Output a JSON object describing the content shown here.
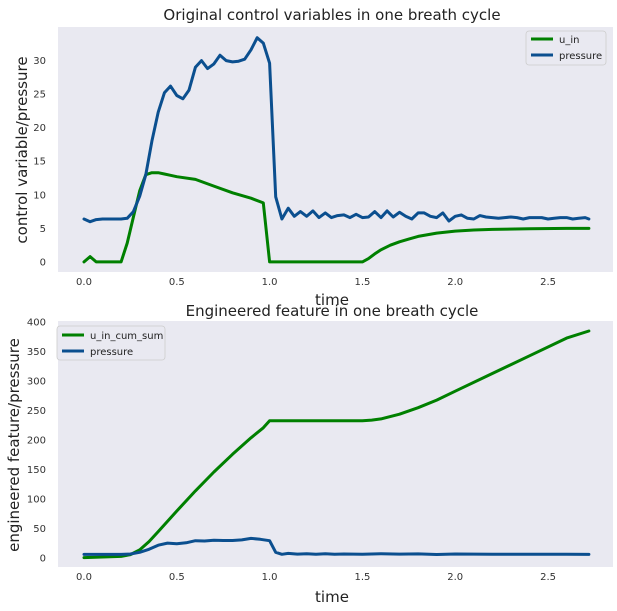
{
  "colors": {
    "u_in": "#008000",
    "pressure": "#0b4f8f",
    "plot_bg": "#e9e9f1",
    "page_bg": "#ffffff"
  },
  "chart_data": [
    {
      "type": "line",
      "title": "Original control variables in one breath cycle",
      "xlabel": "time",
      "ylabel": "control variable/pressure",
      "xlim": [
        -0.14,
        2.85
      ],
      "ylim": [
        -1.5,
        35
      ],
      "xticks": [
        0.0,
        0.5,
        1.0,
        1.5,
        2.0,
        2.5
      ],
      "xtick_labels": [
        "0.0",
        "0.5",
        "1.0",
        "1.5",
        "2.0",
        "2.5"
      ],
      "yticks": [
        0,
        5,
        10,
        15,
        20,
        25,
        30
      ],
      "ytick_labels": [
        "0",
        "5",
        "10",
        "15",
        "20",
        "25",
        "30"
      ],
      "grid": false,
      "legend_position": "top-right",
      "series": [
        {
          "name": "u_in",
          "color": "#008000",
          "x": [
            0.0,
            0.033,
            0.066,
            0.1,
            0.2,
            0.233,
            0.266,
            0.3,
            0.333,
            0.366,
            0.4,
            0.433,
            0.466,
            0.5,
            0.6,
            0.7,
            0.8,
            0.9,
            0.966,
            1.0,
            1.1,
            1.2,
            1.3,
            1.4,
            1.5,
            1.533,
            1.566,
            1.6,
            1.65,
            1.7,
            1.75,
            1.8,
            1.9,
            2.0,
            2.1,
            2.2,
            2.4,
            2.6,
            2.72
          ],
          "values": [
            0.0,
            0.8,
            0.0,
            0.0,
            0.0,
            2.8,
            6.7,
            10.6,
            13.0,
            13.3,
            13.3,
            13.1,
            12.9,
            12.7,
            12.3,
            11.3,
            10.3,
            9.5,
            8.8,
            0.0,
            0.0,
            0.0,
            0.0,
            0.0,
            0.0,
            0.5,
            1.2,
            1.8,
            2.5,
            3.0,
            3.4,
            3.8,
            4.3,
            4.6,
            4.75,
            4.85,
            4.95,
            5.0,
            5.0
          ]
        },
        {
          "name": "pressure",
          "color": "#0b4f8f",
          "x": [
            0.0,
            0.033,
            0.066,
            0.1,
            0.133,
            0.166,
            0.2,
            0.233,
            0.266,
            0.3,
            0.333,
            0.366,
            0.4,
            0.433,
            0.466,
            0.5,
            0.533,
            0.566,
            0.6,
            0.633,
            0.666,
            0.7,
            0.733,
            0.766,
            0.8,
            0.833,
            0.866,
            0.9,
            0.933,
            0.966,
            1.0,
            1.033,
            1.066,
            1.1,
            1.133,
            1.166,
            1.2,
            1.233,
            1.266,
            1.3,
            1.333,
            1.366,
            1.4,
            1.433,
            1.466,
            1.5,
            1.533,
            1.566,
            1.6,
            1.633,
            1.666,
            1.7,
            1.733,
            1.766,
            1.8,
            1.833,
            1.866,
            1.9,
            1.933,
            1.966,
            2.0,
            2.033,
            2.066,
            2.1,
            2.133,
            2.166,
            2.2,
            2.233,
            2.266,
            2.3,
            2.333,
            2.366,
            2.4,
            2.433,
            2.466,
            2.5,
            2.533,
            2.566,
            2.6,
            2.633,
            2.666,
            2.7,
            2.72
          ],
          "values": [
            6.4,
            6.0,
            6.3,
            6.4,
            6.4,
            6.4,
            6.4,
            6.5,
            7.5,
            9.8,
            13.0,
            18.0,
            22.3,
            25.2,
            26.2,
            24.8,
            24.3,
            25.6,
            29.0,
            30.0,
            28.8,
            29.5,
            30.8,
            30.0,
            29.8,
            29.9,
            30.2,
            31.6,
            33.4,
            32.6,
            29.6,
            9.7,
            6.4,
            8.0,
            6.8,
            7.5,
            6.8,
            7.6,
            6.6,
            7.3,
            6.6,
            6.9,
            7.0,
            6.6,
            7.1,
            6.6,
            6.7,
            7.5,
            6.6,
            7.6,
            6.7,
            7.4,
            6.8,
            6.4,
            7.3,
            7.3,
            6.8,
            6.6,
            7.3,
            6.1,
            6.8,
            7.0,
            6.5,
            6.4,
            6.9,
            6.7,
            6.6,
            6.5,
            6.6,
            6.7,
            6.6,
            6.4,
            6.6,
            6.6,
            6.6,
            6.4,
            6.5,
            6.6,
            6.6,
            6.4,
            6.5,
            6.6,
            6.4
          ]
        }
      ]
    },
    {
      "type": "line",
      "title": "Engineered feature in one breath cycle",
      "xlabel": "time",
      "ylabel": "engineered feature/pressure",
      "xlim": [
        -0.14,
        2.85
      ],
      "ylim": [
        -15,
        402
      ],
      "xticks": [
        0.0,
        0.5,
        1.0,
        1.5,
        2.0,
        2.5
      ],
      "xtick_labels": [
        "0.0",
        "0.5",
        "1.0",
        "1.5",
        "2.0",
        "2.5"
      ],
      "yticks": [
        0,
        50,
        100,
        150,
        200,
        250,
        300,
        350,
        400
      ],
      "ytick_labels": [
        "0",
        "50",
        "100",
        "150",
        "200",
        "250",
        "300",
        "350",
        "400"
      ],
      "grid": false,
      "legend_position": "top-left",
      "series": [
        {
          "name": "u_in_cum_sum",
          "color": "#008000",
          "x": [
            0.0,
            0.1,
            0.2,
            0.25,
            0.3,
            0.35,
            0.4,
            0.5,
            0.6,
            0.7,
            0.8,
            0.9,
            0.966,
            1.0,
            1.1,
            1.2,
            1.3,
            1.4,
            1.5,
            1.55,
            1.6,
            1.7,
            1.8,
            1.9,
            2.0,
            2.2,
            2.4,
            2.6,
            2.72
          ],
          "values": [
            1,
            2,
            3,
            6,
            14,
            28,
            45,
            80,
            114,
            146,
            176,
            204,
            221,
            233,
            233,
            233,
            233,
            233,
            233,
            234,
            236,
            244,
            255,
            268,
            283,
            313,
            343,
            373,
            385
          ]
        },
        {
          "name": "pressure",
          "color": "#0b4f8f",
          "x": [
            0.0,
            0.1,
            0.2,
            0.25,
            0.3,
            0.35,
            0.4,
            0.45,
            0.5,
            0.55,
            0.6,
            0.65,
            0.7,
            0.75,
            0.8,
            0.85,
            0.9,
            0.95,
            1.0,
            1.033,
            1.066,
            1.1,
            1.15,
            1.2,
            1.25,
            1.3,
            1.35,
            1.4,
            1.5,
            1.6,
            1.7,
            1.8,
            1.9,
            2.0,
            2.2,
            2.4,
            2.6,
            2.72
          ],
          "values": [
            6.4,
            6.4,
            6.4,
            7.0,
            10.0,
            15.0,
            22.0,
            25.5,
            24.5,
            26.0,
            29.5,
            29.0,
            30.5,
            30.0,
            30.0,
            31.0,
            33.4,
            32.0,
            29.6,
            10.0,
            6.5,
            8.0,
            6.8,
            7.5,
            6.7,
            7.5,
            6.7,
            7.1,
            6.7,
            7.5,
            6.8,
            7.2,
            6.2,
            7.0,
            6.6,
            6.6,
            6.5,
            6.4
          ]
        }
      ]
    }
  ]
}
